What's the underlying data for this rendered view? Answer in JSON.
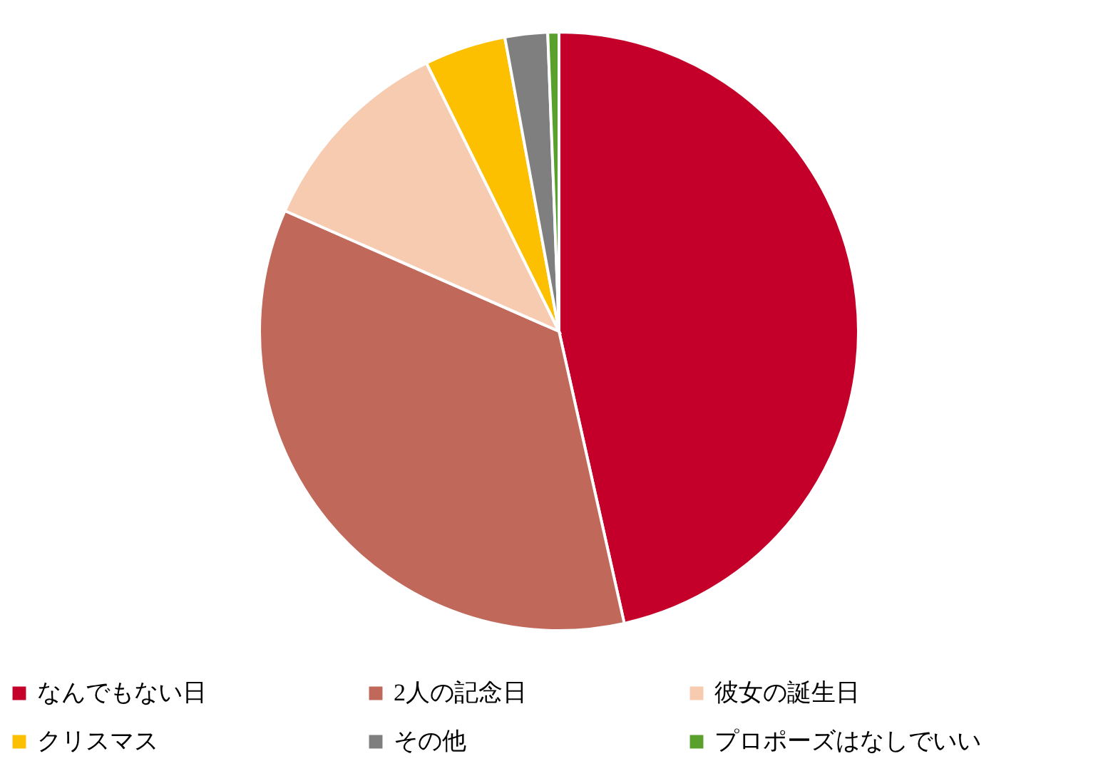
{
  "chart_data": {
    "type": "pie",
    "categories": [
      "なんでもない日",
      "2人の記念日",
      "彼女の誕生日",
      "クリスマス",
      "その他",
      "プロポーズはなしでいい"
    ],
    "values": [
      46.5,
      35.1,
      11.1,
      4.4,
      2.3,
      0.6
    ],
    "colors": [
      "#c4002a",
      "#c0685a",
      "#f6cbb0",
      "#fcc000",
      "#7f7f7f",
      "#5aa02c"
    ],
    "legend": "bottom"
  }
}
